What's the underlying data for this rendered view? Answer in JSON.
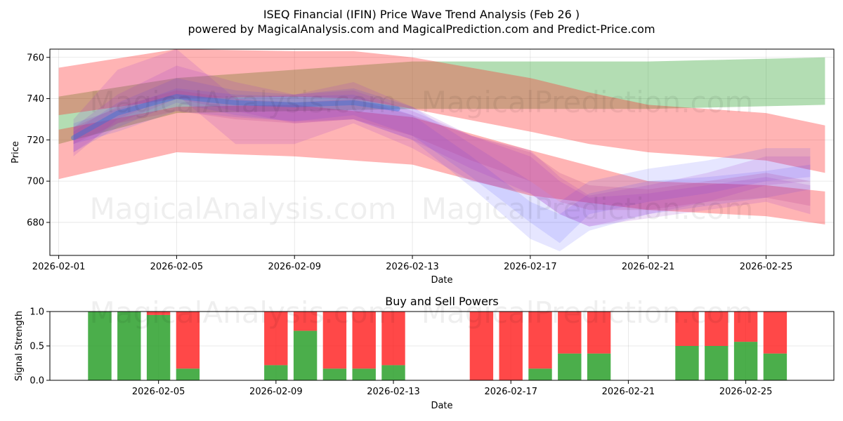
{
  "chart_data": [
    {
      "type": "area",
      "title": "ISEQ Financial (IFIN) Price Wave Trend Analysis (Feb 26 )",
      "subtitle": "powered by MagicalAnalysis.com and MagicalPrediction.com and Predict-Price.com",
      "xlabel": "Date",
      "ylabel": "Price",
      "ylim": [
        664,
        764
      ],
      "xlim": [
        -0.3,
        26.3
      ],
      "x_origin": "2026-02-01",
      "x_ticks": [
        {
          "day": 0,
          "label": "2026-02-01"
        },
        {
          "day": 4,
          "label": "2026-02-05"
        },
        {
          "day": 8,
          "label": "2026-02-09"
        },
        {
          "day": 12,
          "label": "2026-02-13"
        },
        {
          "day": 16,
          "label": "2026-02-17"
        },
        {
          "day": 20,
          "label": "2026-02-21"
        },
        {
          "day": 24,
          "label": "2026-02-25"
        }
      ],
      "y_ticks": [
        680,
        700,
        720,
        740,
        760
      ],
      "grid": true,
      "watermarks": [
        "MagicalAnalysis.com",
        "MagicalPrediction.com",
        "MagicalAnalysis.com",
        "MagicalPrediction.com"
      ],
      "bands": [
        {
          "name": "green-channel",
          "color": "#2ca02c",
          "opacity": 0.36,
          "x": [
            0,
            4,
            8,
            12,
            16,
            20,
            26
          ],
          "upper": [
            741,
            750,
            754,
            758,
            758,
            758,
            760
          ],
          "lower": [
            718,
            733,
            734,
            735,
            735,
            735,
            737
          ]
        },
        {
          "name": "red-channel-top",
          "color": "#ff3030",
          "opacity": 0.36,
          "x": [
            0,
            4,
            8,
            10,
            12,
            16,
            18,
            20,
            24,
            26
          ],
          "upper": [
            755,
            764,
            763,
            763,
            760,
            750,
            743,
            737,
            733,
            727
          ],
          "lower": [
            732,
            740,
            741,
            740,
            735,
            724,
            718,
            714,
            710,
            704
          ]
        },
        {
          "name": "red-channel-bottom",
          "color": "#ff3030",
          "opacity": 0.36,
          "x": [
            0,
            4,
            8,
            12,
            16,
            20,
            24,
            26
          ],
          "upper": [
            725,
            736,
            737,
            731,
            715,
            700,
            698,
            695
          ],
          "lower": [
            701,
            714,
            712,
            708,
            693,
            686,
            683,
            679
          ]
        },
        {
          "name": "blue-wave-1",
          "color": "#3333ff",
          "opacity": 0.12,
          "x": [
            0.5,
            2,
            4,
            6,
            8,
            10,
            12,
            14,
            16,
            17,
            18,
            20,
            22,
            24,
            25.5
          ],
          "upper": [
            728,
            735,
            745,
            742,
            741,
            742,
            732,
            712,
            690,
            684,
            694,
            700,
            702,
            705,
            708
          ],
          "lower": [
            718,
            724,
            734,
            731,
            729,
            730,
            720,
            697,
            672,
            666,
            676,
            684,
            688,
            692,
            696
          ]
        },
        {
          "name": "blue-wave-2",
          "color": "#3333ff",
          "opacity": 0.12,
          "x": [
            0.5,
            2,
            4,
            6,
            8,
            10,
            12,
            14,
            16,
            17,
            18,
            20,
            22,
            24,
            25.5
          ],
          "upper": [
            724,
            738,
            750,
            744,
            742,
            745,
            736,
            718,
            700,
            690,
            700,
            706,
            710,
            716,
            716
          ],
          "lower": [
            714,
            726,
            738,
            732,
            729,
            732,
            722,
            702,
            680,
            670,
            684,
            690,
            694,
            700,
            702
          ]
        },
        {
          "name": "purple-wave-1",
          "color": "#9933cc",
          "opacity": 0.16,
          "x": [
            0.5,
            2,
            4,
            5,
            6,
            8,
            10,
            12,
            14,
            16,
            17,
            18,
            20,
            22,
            24,
            25.5
          ],
          "upper": [
            730,
            754,
            764,
            752,
            740,
            742,
            748,
            736,
            722,
            715,
            702,
            693,
            698,
            704,
            712,
            712
          ],
          "lower": [
            712,
            730,
            742,
            730,
            718,
            718,
            728,
            716,
            700,
            694,
            684,
            678,
            684,
            690,
            698,
            700
          ]
        },
        {
          "name": "purple-wave-2",
          "color": "#9933cc",
          "opacity": 0.16,
          "x": [
            0.5,
            2,
            4,
            6,
            8,
            10,
            12,
            14,
            16,
            17,
            18,
            20,
            22,
            24,
            25.5
          ],
          "upper": [
            726,
            742,
            756,
            748,
            742,
            744,
            734,
            722,
            712,
            700,
            692,
            694,
            698,
            702,
            698
          ],
          "lower": [
            714,
            728,
            740,
            734,
            728,
            730,
            720,
            706,
            694,
            684,
            678,
            682,
            686,
            690,
            684
          ]
        },
        {
          "name": "purple-wave-3",
          "color": "#b03a8a",
          "opacity": 0.18,
          "x": [
            0.5,
            2,
            4,
            6,
            8,
            10,
            12,
            14,
            16,
            17,
            18,
            20,
            22,
            24,
            25.5
          ],
          "upper": [
            726,
            736,
            744,
            740,
            738,
            740,
            732,
            722,
            714,
            704,
            698,
            696,
            700,
            704,
            700
          ],
          "lower": [
            718,
            728,
            734,
            730,
            728,
            730,
            722,
            710,
            700,
            690,
            686,
            686,
            690,
            692,
            688
          ]
        }
      ],
      "lines": [
        {
          "name": "blue-mean-line",
          "color": "#3b6fd4",
          "opacity": 0.45,
          "width": 7,
          "x": [
            0.5,
            2,
            4,
            6,
            8,
            10,
            11.5
          ],
          "y": [
            721,
            733,
            741,
            738,
            737,
            738,
            735
          ]
        }
      ]
    },
    {
      "type": "bar",
      "title": "Buy and Sell Powers",
      "xlabel": "Date",
      "ylabel": "Signal Strength",
      "ylim": [
        0,
        1
      ],
      "xlim": [
        0.3,
        27.0
      ],
      "y_ticks": [
        {
          "v": 0.0,
          "label": "0.0"
        },
        {
          "v": 0.5,
          "label": "0.5"
        },
        {
          "v": 1.0,
          "label": "1.0"
        }
      ],
      "x_ticks": [
        {
          "day": 4,
          "label": "2026-02-05"
        },
        {
          "day": 8,
          "label": "2026-02-09"
        },
        {
          "day": 12,
          "label": "2026-02-13"
        },
        {
          "day": 16,
          "label": "2026-02-17"
        },
        {
          "day": 20,
          "label": "2026-02-21"
        },
        {
          "day": 24,
          "label": "2026-02-25"
        }
      ],
      "buy_color": "#2ca02c",
      "sell_color": "#ff2020",
      "series": [
        {
          "name": "Buy",
          "values": [
            1.0,
            1.0,
            0.95,
            0.17,
            0.22,
            0.72,
            0.17,
            0.17,
            0.22,
            0.0,
            0.0,
            0.17,
            0.39,
            0.39,
            0.5,
            0.5,
            0.56,
            0.39
          ]
        },
        {
          "name": "Sell",
          "values": [
            0.0,
            0.0,
            0.05,
            0.83,
            0.78,
            0.28,
            0.83,
            0.83,
            0.78,
            1.0,
            1.0,
            0.83,
            0.61,
            0.61,
            0.5,
            0.5,
            0.44,
            0.61
          ]
        }
      ],
      "bar_days": [
        2,
        3,
        4,
        5,
        8,
        9,
        10,
        11,
        12,
        15,
        16,
        17,
        18,
        19,
        22,
        23,
        24,
        25
      ],
      "watermarks": [
        "MagicalAnalysis.com",
        "MagicalPrediction.com"
      ]
    }
  ]
}
